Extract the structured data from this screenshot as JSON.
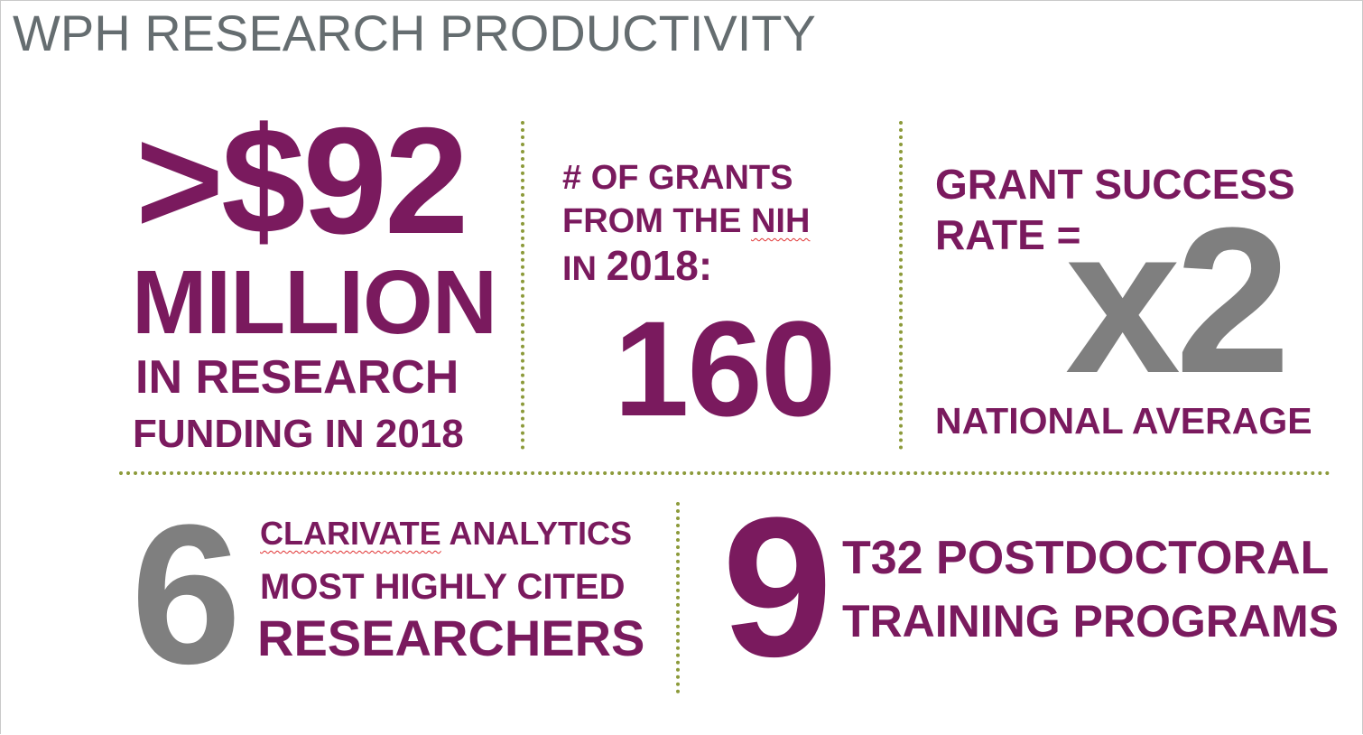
{
  "title": "WPH RESEARCH PRODUCTIVITY",
  "funding": {
    "amount": ">$92",
    "unit": "MILLION",
    "line1": "IN RESEARCH",
    "line2": "FUNDING IN 2018"
  },
  "grants": {
    "line1": "# OF GRANTS",
    "line2_a": "FROM THE ",
    "line2_b": "NIH",
    "line3_a": "IN ",
    "line3_b": "2018:",
    "count": "160"
  },
  "success": {
    "line1": "GRANT SUCCESS",
    "line2": "RATE =",
    "multiplier": "x2",
    "line3": "NATIONAL AVERAGE"
  },
  "cited": {
    "count": "6",
    "line1_a": "CLARIVATE",
    "line1_b": " ANALYTICS",
    "line2": "MOST HIGHLY CITED",
    "line3": "RESEARCHERS"
  },
  "training": {
    "count": "9",
    "line1": "T32 POSTDOCTORAL",
    "line2": "TRAINING PROGRAMS"
  },
  "colors": {
    "purple": "#7a1a5e",
    "gray": "#7f7f7f",
    "title_gray": "#656d70",
    "divider": "#8c9a3a"
  }
}
